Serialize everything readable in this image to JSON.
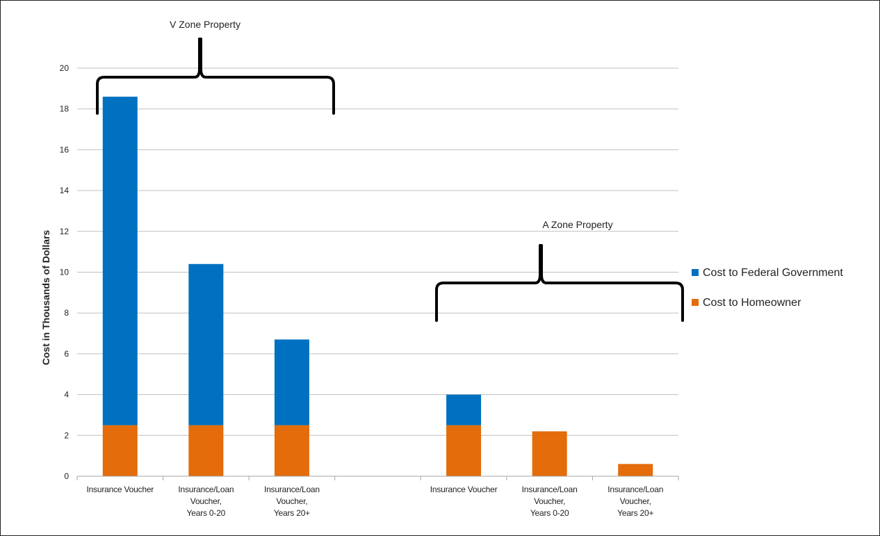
{
  "chart_data": {
    "type": "bar",
    "stacked": true,
    "ylabel": "Cost in Thousands of Dollars",
    "xlabel": "",
    "ylim": [
      0,
      20
    ],
    "yticks": [
      0,
      2,
      4,
      6,
      8,
      10,
      12,
      14,
      16,
      18,
      20
    ],
    "grid": true,
    "legend_position": "right",
    "categories": [
      [
        "Insurance Voucher"
      ],
      [
        "Insurance/Loan",
        "Voucher,",
        "Years 0-20"
      ],
      [
        "Insurance/Loan",
        "Voucher,",
        "Years 20+"
      ],
      [
        ""
      ],
      [
        "Insurance Voucher"
      ],
      [
        "Insurance/Loan",
        "Voucher,",
        "Years 0-20"
      ],
      [
        "Insurance/Loan",
        "Voucher,",
        "Years 20+"
      ]
    ],
    "series": [
      {
        "name": "Cost to Homeowner",
        "color": "#E46C0A",
        "values": [
          2.5,
          2.5,
          2.5,
          null,
          2.5,
          2.2,
          0.6
        ]
      },
      {
        "name": "Cost to Federal Government",
        "color": "#0070C0",
        "values": [
          16.1,
          7.9,
          4.2,
          null,
          1.5,
          0,
          0
        ]
      }
    ],
    "legend_order": [
      "Cost to Federal Government",
      "Cost to Homeowner"
    ],
    "annotations": [
      {
        "text": "V Zone Property",
        "spans_categories": [
          0,
          2
        ]
      },
      {
        "text": "A Zone Property",
        "spans_categories": [
          4,
          6
        ]
      }
    ]
  }
}
